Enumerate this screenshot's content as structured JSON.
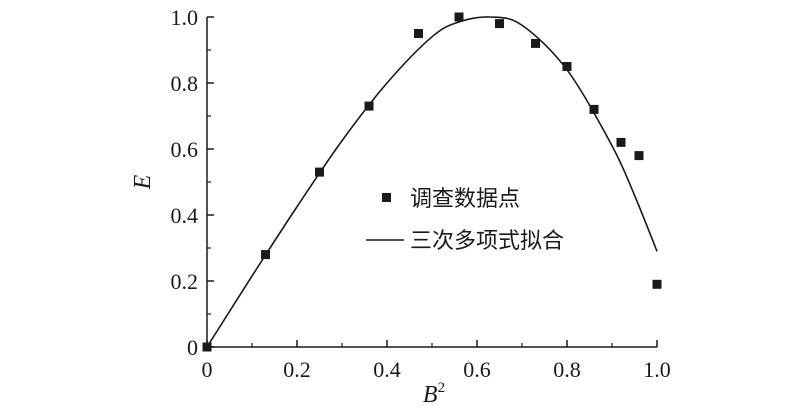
{
  "chart_data": {
    "type": "scatter",
    "xlabel": "B",
    "xlabel_superscript": "2",
    "ylabel": "E",
    "xlim": [
      0,
      1.0
    ],
    "ylim": [
      0,
      1.0
    ],
    "x_ticks": [
      "0",
      "0.2",
      "0.4",
      "0.6",
      "0.8",
      "1.0"
    ],
    "y_ticks": [
      "0",
      "0.2",
      "0.4",
      "0.6",
      "0.8",
      "1.0"
    ],
    "legend_position": "center-right",
    "series": [
      {
        "name": "调查数据点",
        "kind": "scatter",
        "marker": "square",
        "color": "#1a1a1a",
        "points": [
          [
            0.0,
            0.0
          ],
          [
            0.13,
            0.28
          ],
          [
            0.25,
            0.53
          ],
          [
            0.36,
            0.73
          ],
          [
            0.47,
            0.95
          ],
          [
            0.56,
            1.0
          ],
          [
            0.65,
            0.98
          ],
          [
            0.73,
            0.92
          ],
          [
            0.8,
            0.85
          ],
          [
            0.86,
            0.72
          ],
          [
            0.92,
            0.62
          ],
          [
            0.96,
            0.58
          ],
          [
            1.0,
            0.19
          ]
        ]
      },
      {
        "name": "三次多项式拟合",
        "kind": "line",
        "color": "#1a1a1a",
        "points": [
          [
            0.0,
            0.0
          ],
          [
            0.1,
            0.215
          ],
          [
            0.2,
            0.425
          ],
          [
            0.3,
            0.625
          ],
          [
            0.4,
            0.8
          ],
          [
            0.5,
            0.94
          ],
          [
            0.56,
            0.985
          ],
          [
            0.63,
            1.0
          ],
          [
            0.7,
            0.975
          ],
          [
            0.8,
            0.84
          ],
          [
            0.9,
            0.61
          ],
          [
            0.95,
            0.46
          ],
          [
            1.0,
            0.29
          ]
        ]
      }
    ]
  }
}
